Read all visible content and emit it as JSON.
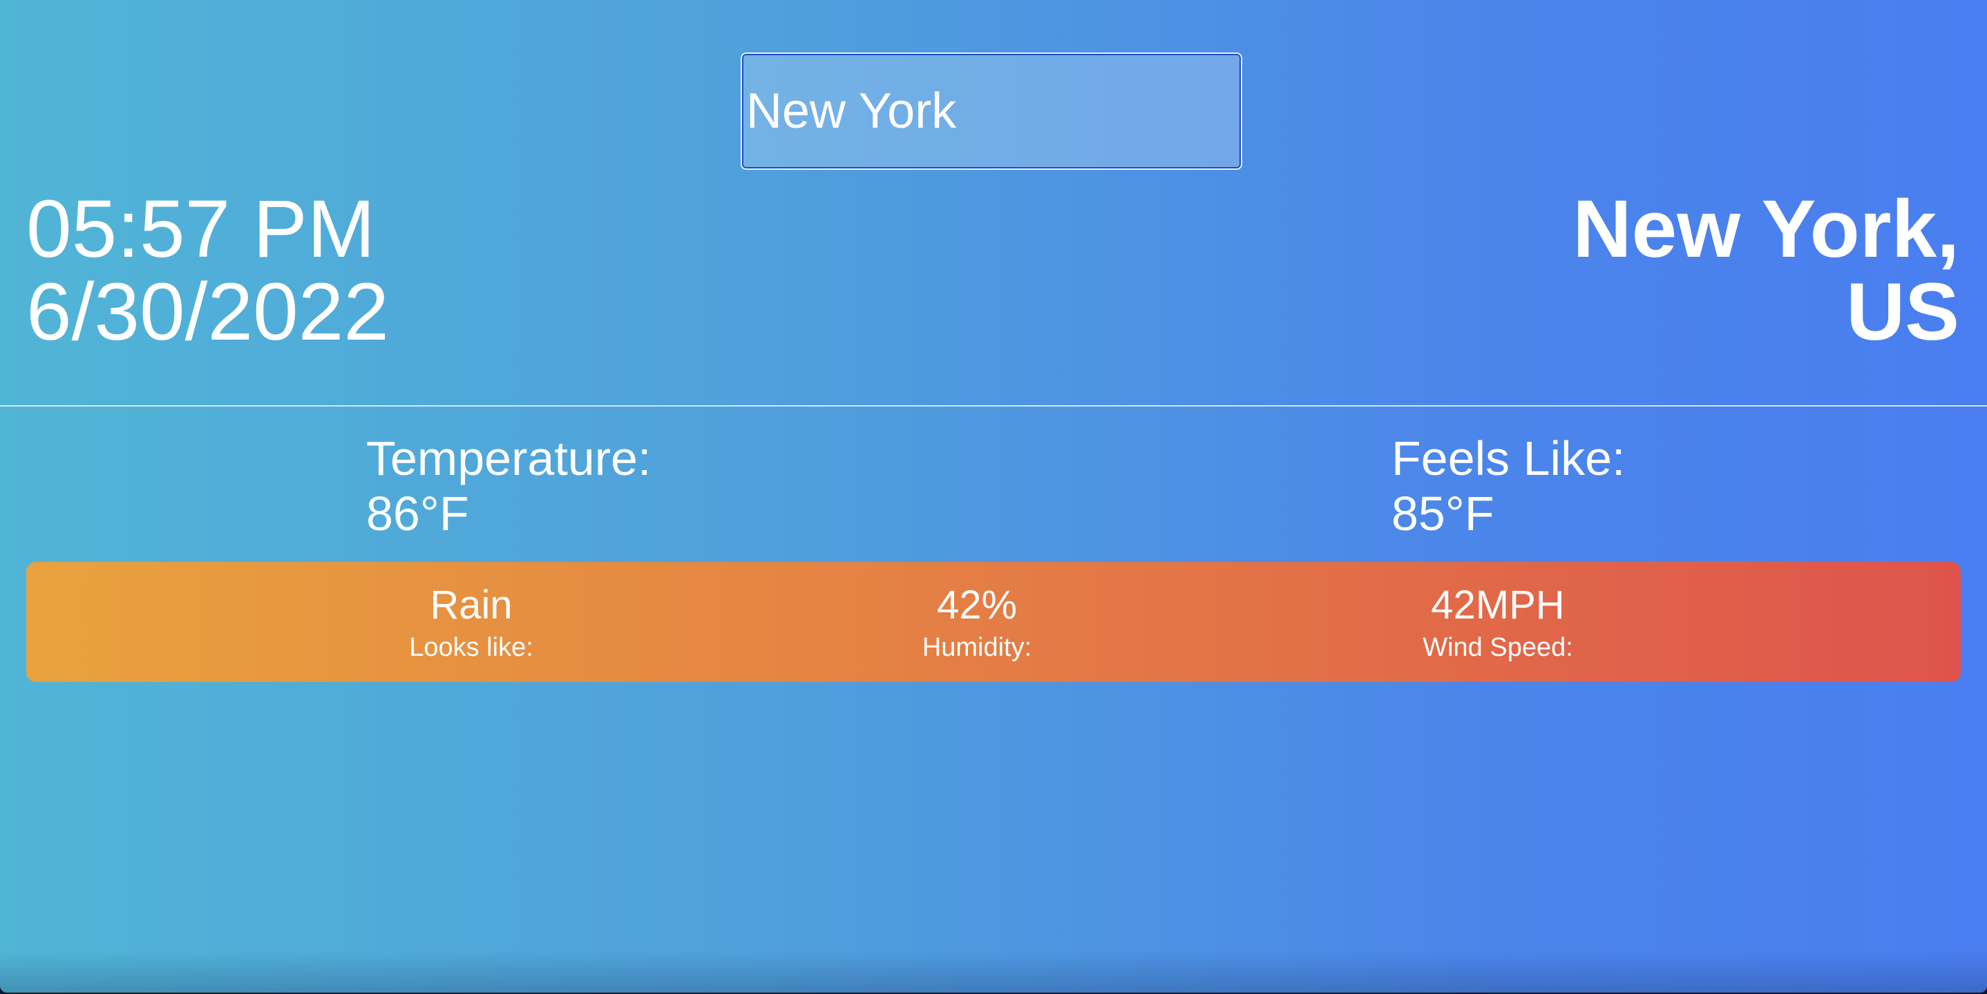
{
  "search": {
    "value": "New York"
  },
  "datetime": {
    "time": "05:57 PM",
    "date": "6/30/2022"
  },
  "location": {
    "city": "New York,",
    "country": "US"
  },
  "metrics": {
    "temperature": {
      "label": "Temperature:",
      "value": "86°F"
    },
    "feels_like": {
      "label": "Feels Like:",
      "value": "85°F"
    }
  },
  "details": {
    "condition": {
      "value": "Rain",
      "label": "Looks like:"
    },
    "humidity": {
      "value": "42%",
      "label": "Humidity:"
    },
    "wind": {
      "value": "42MPH",
      "label": "Wind Speed:"
    }
  },
  "colors": {
    "background_start": "#51b5d6",
    "background_end": "#4a7ef0",
    "bar_start": "#e9a23d",
    "bar_end": "#de544c"
  }
}
